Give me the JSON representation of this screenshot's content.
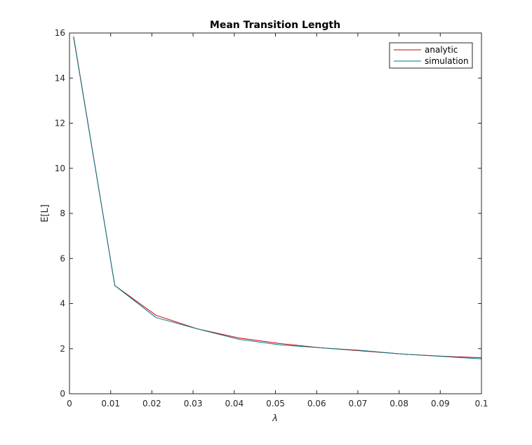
{
  "chart_data": {
    "type": "line",
    "title": "Mean Transition Length",
    "xlabel": "λ",
    "ylabel": "E[L]",
    "xlim": [
      0,
      0.1
    ],
    "ylim": [
      0,
      16
    ],
    "xticks": [
      0,
      0.01,
      0.02,
      0.03,
      0.04,
      0.05,
      0.06,
      0.07,
      0.08,
      0.09,
      0.1
    ],
    "xtick_labels": [
      "0",
      "0.01",
      "0.02",
      "0.03",
      "0.04",
      "0.05",
      "0.06",
      "0.07",
      "0.08",
      "0.09",
      "0.1"
    ],
    "yticks": [
      0,
      2,
      4,
      6,
      8,
      10,
      12,
      14,
      16
    ],
    "ytick_labels": [
      "0",
      "2",
      "4",
      "6",
      "8",
      "10",
      "12",
      "14",
      "16"
    ],
    "grid": false,
    "legend_position": "top-right",
    "series": [
      {
        "name": "analytic",
        "color": "#d40000",
        "x": [
          0.001,
          0.011,
          0.021,
          0.031,
          0.041,
          0.051,
          0.061,
          0.071,
          0.081,
          0.091,
          0.1
        ],
        "y": [
          15.85,
          4.8,
          3.48,
          2.88,
          2.48,
          2.23,
          2.04,
          1.9,
          1.76,
          1.66,
          1.6
        ]
      },
      {
        "name": "simulation",
        "color": "#007a8a",
        "x": [
          0.001,
          0.011,
          0.021,
          0.031,
          0.041,
          0.051,
          0.061,
          0.071,
          0.081,
          0.091,
          0.1
        ],
        "y": [
          15.8,
          4.8,
          3.38,
          2.88,
          2.42,
          2.17,
          2.04,
          1.92,
          1.76,
          1.65,
          1.55
        ]
      }
    ]
  }
}
